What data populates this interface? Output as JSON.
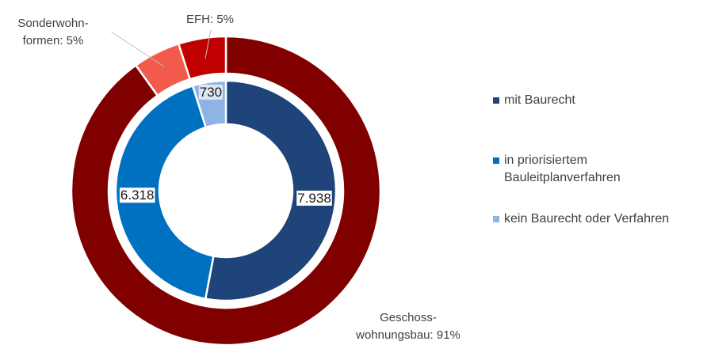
{
  "chart_data": {
    "type": "nested-donut",
    "outer": {
      "values": [
        91,
        5,
        5
      ],
      "value_labels": [
        "Geschoss-\nwohnungsbau: 91%",
        "Sonderwohn-\nformen: 5%",
        "EFH: 5%"
      ],
      "colors": [
        "#800000",
        "#f25a4b",
        "#c00000"
      ]
    },
    "inner": {
      "categories": [
        "mit Baurecht",
        "in priorisiertem\nBauleitplanverfahren",
        "kein Baurecht oder Verfahren"
      ],
      "values": [
        7938,
        6318,
        730
      ],
      "value_labels": [
        "7.938",
        "6.318",
        "730"
      ],
      "colors": [
        "#1f4479",
        "#0070c0",
        "#8db4e2"
      ]
    },
    "legend": "right"
  }
}
